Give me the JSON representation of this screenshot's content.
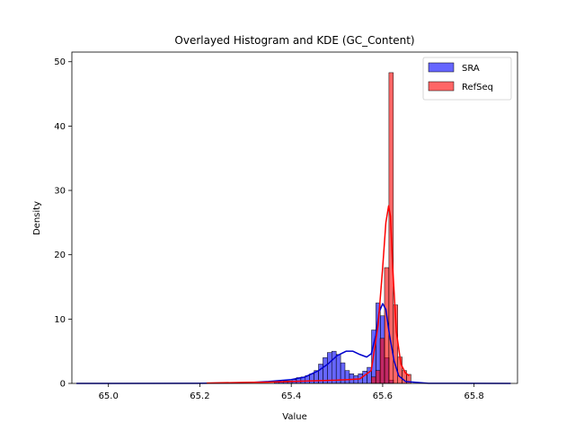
{
  "chart_data": {
    "type": "histogram",
    "title": "Overlayed Histogram and KDE (GC_Content)",
    "xlabel": "Value",
    "ylabel": "Density",
    "xlim": [
      64.92,
      65.895
    ],
    "ylim": [
      0,
      51.5
    ],
    "xticks": [
      65.0,
      65.2,
      65.4,
      65.6,
      65.8
    ],
    "xtick_labels": [
      "65.0",
      "65.2",
      "65.4",
      "65.6",
      "65.8"
    ],
    "yticks": [
      0,
      10,
      20,
      30,
      40,
      50
    ],
    "ytick_labels": [
      "0",
      "10",
      "20",
      "30",
      "40",
      "50"
    ],
    "legend_position": "upper right",
    "grid": false,
    "series": [
      {
        "name": "SRA",
        "fill_color": "#0000ff",
        "line_color": "#0000cc",
        "bin_width": 0.00965,
        "bins_start": [
          65.363,
          65.3727,
          65.3823,
          65.392,
          65.4016,
          65.4113,
          65.421,
          65.4306,
          65.4403,
          65.45,
          65.4596,
          65.4693,
          65.4789,
          65.4886,
          65.4983,
          65.5079,
          65.5176,
          65.5273,
          65.5369,
          65.5466,
          65.5562,
          65.5659,
          65.5756,
          65.5852,
          65.5949,
          65.6046,
          65.6142
        ],
        "bin_density": [
          0.3,
          0.3,
          0.4,
          0.4,
          0.6,
          0.9,
          1.0,
          1.2,
          1.5,
          2.0,
          3.0,
          4.0,
          4.8,
          5.0,
          4.5,
          3.2,
          2.0,
          1.5,
          1.2,
          1.5,
          1.9,
          2.5,
          8.3,
          12.5,
          10.5,
          4.0,
          0.5
        ],
        "kde_x": [
          64.93,
          65.2,
          65.3,
          65.35,
          65.4,
          65.43,
          65.46,
          65.48,
          65.5,
          65.52,
          65.535,
          65.55,
          65.565,
          65.575,
          65.585,
          65.592,
          65.6,
          65.607,
          65.615,
          65.625,
          65.635,
          65.65,
          65.7,
          65.88
        ],
        "kde_y": [
          0.0,
          0.02,
          0.1,
          0.3,
          0.6,
          1.0,
          2.0,
          3.0,
          4.3,
          5.0,
          5.0,
          4.5,
          4.1,
          4.6,
          7.5,
          11.0,
          12.4,
          11.5,
          7.5,
          3.5,
          1.2,
          0.3,
          0.02,
          0.0
        ]
      },
      {
        "name": "RefSeq",
        "fill_color": "#ff0000",
        "line_color": "#ff0000",
        "bin_width": 0.00965,
        "bins_start": [
          65.575,
          65.5847,
          65.5943,
          65.604,
          65.6137,
          65.6233,
          65.633,
          65.6426,
          65.6523
        ],
        "bin_density": [
          1.0,
          2.0,
          7.0,
          18.0,
          48.3,
          12.2,
          4.1,
          2.0,
          1.4
        ],
        "kde_x": [
          65.215,
          65.25,
          65.3,
          65.35,
          65.4,
          65.45,
          65.5,
          65.55,
          65.575,
          65.59,
          65.6,
          65.607,
          65.613,
          65.617,
          65.622,
          65.63,
          65.64,
          65.65,
          65.658
        ],
        "kde_y": [
          0.05,
          0.1,
          0.15,
          0.2,
          0.3,
          0.4,
          0.5,
          0.7,
          2.0,
          9.0,
          18.0,
          25.0,
          27.6,
          26.0,
          18.0,
          8.0,
          3.0,
          1.6,
          1.2
        ]
      }
    ]
  }
}
